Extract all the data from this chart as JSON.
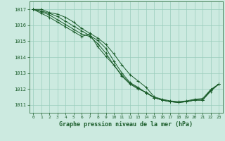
{
  "bg_color": "#cceae0",
  "grid_color": "#99ccbb",
  "line_color": "#1a5c2a",
  "title": "Graphe pression niveau de la mer (hPa)",
  "xlim": [
    -0.5,
    23.5
  ],
  "ylim": [
    1010.5,
    1017.5
  ],
  "yticks": [
    1011,
    1012,
    1013,
    1014,
    1015,
    1016,
    1017
  ],
  "xticks": [
    0,
    1,
    2,
    3,
    4,
    5,
    6,
    7,
    8,
    9,
    10,
    11,
    12,
    13,
    14,
    15,
    16,
    17,
    18,
    19,
    20,
    21,
    22,
    23
  ],
  "series": [
    [
      1017.0,
      1017.0,
      1016.8,
      1016.7,
      1016.5,
      1016.2,
      1015.8,
      1015.5,
      1015.2,
      1014.8,
      1014.2,
      1013.5,
      1012.9,
      1012.5,
      1012.1,
      1011.5,
      1011.35,
      1011.25,
      1011.2,
      1011.25,
      1011.35,
      1011.4,
      1011.95,
      1012.3
    ],
    [
      1017.0,
      1016.9,
      1016.75,
      1016.55,
      1016.25,
      1015.95,
      1015.65,
      1015.35,
      1015.05,
      1014.55,
      1013.75,
      1013.0,
      1012.4,
      1012.1,
      1011.75,
      1011.45,
      1011.3,
      1011.2,
      1011.15,
      1011.2,
      1011.3,
      1011.3,
      1011.9,
      1012.3
    ],
    [
      1017.0,
      1016.85,
      1016.65,
      1016.35,
      1016.05,
      1015.75,
      1015.45,
      1015.3,
      1014.85,
      1014.25,
      1013.5,
      1012.85,
      1012.35,
      1012.05,
      1011.75,
      1011.45,
      1011.3,
      1011.2,
      1011.15,
      1011.2,
      1011.3,
      1011.3,
      1011.85,
      1012.3
    ],
    [
      1017.0,
      1016.75,
      1016.5,
      1016.2,
      1015.9,
      1015.6,
      1015.3,
      1015.45,
      1014.65,
      1014.05,
      1013.5,
      1012.8,
      1012.3,
      1012.0,
      1011.8,
      1011.45,
      1011.3,
      1011.2,
      1011.15,
      1011.2,
      1011.3,
      1011.3,
      1011.95,
      1012.3
    ]
  ]
}
